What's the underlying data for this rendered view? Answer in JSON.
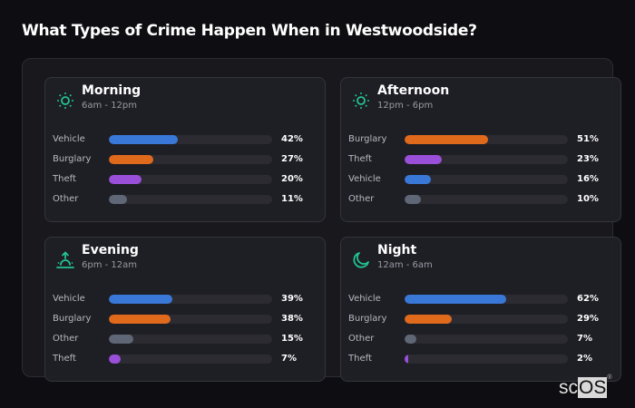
{
  "page": {
    "title": "What Types of Crime Happen When in Westwoodside?"
  },
  "colors": {
    "Vehicle": "#3a78d8",
    "Burglary": "#e06a1c",
    "Theft": "#9a4fd8",
    "Other": "#5f6675",
    "icon": "#22c493"
  },
  "cards": [
    {
      "title": "Morning",
      "subtitle": "6am - 12pm",
      "icon": "sun-icon",
      "rows": [
        {
          "label": "Vehicle",
          "value": 42,
          "pct": "42%"
        },
        {
          "label": "Burglary",
          "value": 27,
          "pct": "27%"
        },
        {
          "label": "Theft",
          "value": 20,
          "pct": "20%"
        },
        {
          "label": "Other",
          "value": 11,
          "pct": "11%"
        }
      ]
    },
    {
      "title": "Afternoon",
      "subtitle": "12pm - 6pm",
      "icon": "sun-icon",
      "rows": [
        {
          "label": "Burglary",
          "value": 51,
          "pct": "51%"
        },
        {
          "label": "Theft",
          "value": 23,
          "pct": "23%"
        },
        {
          "label": "Vehicle",
          "value": 16,
          "pct": "16%"
        },
        {
          "label": "Other",
          "value": 10,
          "pct": "10%"
        }
      ]
    },
    {
      "title": "Evening",
      "subtitle": "6pm - 12am",
      "icon": "sunset-icon",
      "rows": [
        {
          "label": "Vehicle",
          "value": 39,
          "pct": "39%"
        },
        {
          "label": "Burglary",
          "value": 38,
          "pct": "38%"
        },
        {
          "label": "Other",
          "value": 15,
          "pct": "15%"
        },
        {
          "label": "Theft",
          "value": 7,
          "pct": "7%"
        }
      ]
    },
    {
      "title": "Night",
      "subtitle": "12am - 6am",
      "icon": "moon-icon",
      "rows": [
        {
          "label": "Vehicle",
          "value": 62,
          "pct": "62%"
        },
        {
          "label": "Burglary",
          "value": 29,
          "pct": "29%"
        },
        {
          "label": "Other",
          "value": 7,
          "pct": "7%"
        },
        {
          "label": "Theft",
          "value": 2,
          "pct": "2%"
        }
      ]
    }
  ],
  "logo": {
    "prefix": "sc",
    "highlight": "OS",
    "mark": "®"
  },
  "chart_data": {
    "type": "bar",
    "orientation": "horizontal",
    "title": "What Types of Crime Happen When in Westwoodside?",
    "xlabel": "",
    "ylabel": "",
    "xlim": [
      0,
      100
    ],
    "unit": "%",
    "grid": false,
    "legend": "none",
    "categories": [
      "Vehicle",
      "Burglary",
      "Theft",
      "Other"
    ],
    "panels": [
      {
        "title": "Morning",
        "subtitle": "6am - 12pm",
        "categories": [
          "Vehicle",
          "Burglary",
          "Theft",
          "Other"
        ],
        "values": [
          42,
          27,
          20,
          11
        ]
      },
      {
        "title": "Afternoon",
        "subtitle": "12pm - 6pm",
        "categories": [
          "Burglary",
          "Theft",
          "Vehicle",
          "Other"
        ],
        "values": [
          51,
          23,
          16,
          10
        ]
      },
      {
        "title": "Evening",
        "subtitle": "6pm - 12am",
        "categories": [
          "Vehicle",
          "Burglary",
          "Other",
          "Theft"
        ],
        "values": [
          39,
          38,
          15,
          7
        ]
      },
      {
        "title": "Night",
        "subtitle": "12am - 6am",
        "categories": [
          "Vehicle",
          "Burglary",
          "Other",
          "Theft"
        ],
        "values": [
          62,
          29,
          7,
          2
        ]
      }
    ],
    "series": [
      {
        "name": "Vehicle",
        "values": [
          42,
          16,
          39,
          62
        ]
      },
      {
        "name": "Burglary",
        "values": [
          27,
          51,
          38,
          29
        ]
      },
      {
        "name": "Theft",
        "values": [
          20,
          23,
          7,
          2
        ]
      },
      {
        "name": "Other",
        "values": [
          11,
          10,
          15,
          7
        ]
      }
    ],
    "x": [
      "Morning",
      "Afternoon",
      "Evening",
      "Night"
    ]
  }
}
